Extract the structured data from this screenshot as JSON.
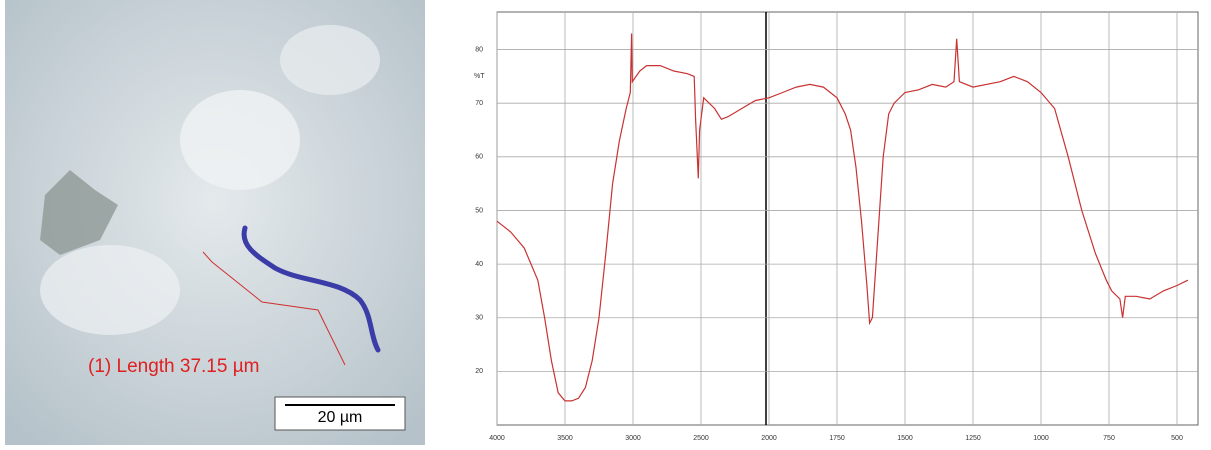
{
  "image_annotations": {
    "measurement": "(1) Length 37.15 µm",
    "scale_bar": "20 µm"
  },
  "chart_data": {
    "type": "line",
    "ylabel": "%T",
    "color": "#c83232",
    "x": [
      4000,
      3900,
      3800,
      3700,
      3650,
      3600,
      3550,
      3500,
      3450,
      3400,
      3350,
      3300,
      3250,
      3200,
      3150,
      3100,
      3050,
      3020,
      3010,
      3005,
      2950,
      2900,
      2800,
      2700,
      2600,
      2550,
      2540,
      2520,
      2510,
      2480,
      2400,
      2350,
      2300,
      2200,
      2100,
      2000,
      1950,
      1900,
      1850,
      1800,
      1750,
      1720,
      1700,
      1680,
      1660,
      1640,
      1630,
      1620,
      1600,
      1580,
      1560,
      1540,
      1500,
      1450,
      1400,
      1350,
      1320,
      1310,
      1300,
      1250,
      1150,
      1100,
      1050,
      1000,
      950,
      900,
      850,
      800,
      760,
      740,
      710,
      700,
      690,
      650,
      600,
      550,
      500,
      460
    ],
    "values": [
      48,
      46,
      43,
      37,
      30,
      22,
      16,
      14.5,
      14.5,
      15,
      17,
      22,
      30,
      42,
      55,
      63,
      69,
      72,
      83,
      74,
      76,
      77,
      77,
      76,
      75.5,
      75,
      67,
      56,
      65,
      71,
      69,
      67,
      67.5,
      69,
      70.5,
      71,
      72,
      73,
      73.5,
      73,
      71,
      68,
      65,
      58,
      48,
      36,
      29,
      30,
      45,
      60,
      68,
      70,
      72,
      72.5,
      73.5,
      73,
      74,
      82,
      74,
      73,
      74,
      75,
      74,
      72,
      69,
      60,
      50,
      42,
      37,
      35,
      33.5,
      30,
      34,
      34,
      33.5,
      35,
      36,
      37
    ],
    "xlim": [
      4000,
      450
    ],
    "ylim": [
      10,
      87
    ],
    "xticks": [
      4000,
      3500,
      3000,
      2500,
      2000,
      1750,
      1500,
      1250,
      1000,
      750,
      500
    ],
    "yticks": [
      20,
      30,
      40,
      50,
      60,
      70,
      80
    ],
    "grid": true
  }
}
